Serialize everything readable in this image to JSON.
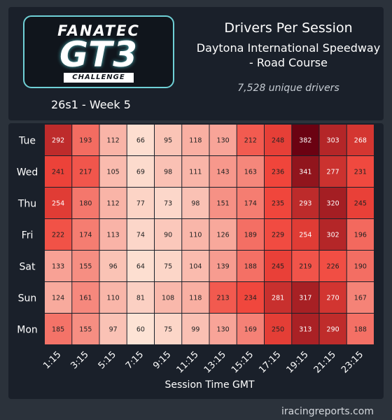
{
  "header": {
    "logo": {
      "brand": "FANATEC",
      "series": "GT3",
      "tagline": "CHALLENGE"
    },
    "season_week": "26s1 - Week 5",
    "title": "Drivers Per Session",
    "track_line1": "Daytona International Speedway",
    "track_line2": "- Road Course",
    "unique_drivers": "7,528 unique drivers"
  },
  "footer": {
    "source": "iracingreports.com"
  },
  "chart_data": {
    "type": "heatmap",
    "title": "Drivers Per Session",
    "xlabel": "Session Time GMT",
    "ylabel": "",
    "x": [
      "1:15",
      "3:15",
      "5:15",
      "7:15",
      "9:15",
      "11:15",
      "13:15",
      "15:15",
      "17:15",
      "19:15",
      "21:15",
      "23:15"
    ],
    "y": [
      "Tue",
      "Wed",
      "Thu",
      "Fri",
      "Sat",
      "Sun",
      "Mon"
    ],
    "values": [
      [
        292,
        193,
        112,
        66,
        95,
        118,
        130,
        212,
        248,
        382,
        303,
        268
      ],
      [
        241,
        217,
        105,
        69,
        98,
        111,
        143,
        163,
        236,
        341,
        277,
        231
      ],
      [
        254,
        180,
        112,
        77,
        73,
        98,
        151,
        174,
        235,
        293,
        320,
        245
      ],
      [
        222,
        174,
        113,
        74,
        90,
        110,
        126,
        189,
        229,
        254,
        302,
        196
      ],
      [
        133,
        155,
        96,
        64,
        75,
        104,
        139,
        188,
        245,
        219,
        226,
        190
      ],
      [
        124,
        161,
        110,
        81,
        108,
        118,
        213,
        234,
        281,
        317,
        270,
        167
      ],
      [
        185,
        155,
        97,
        60,
        75,
        99,
        130,
        169,
        250,
        313,
        290,
        188
      ]
    ],
    "value_range": [
      60,
      382
    ],
    "colors": {
      "low": "#fde3d5",
      "mid": "#f0443a",
      "high": "#6b0212"
    },
    "grid": true,
    "legend": "none"
  }
}
